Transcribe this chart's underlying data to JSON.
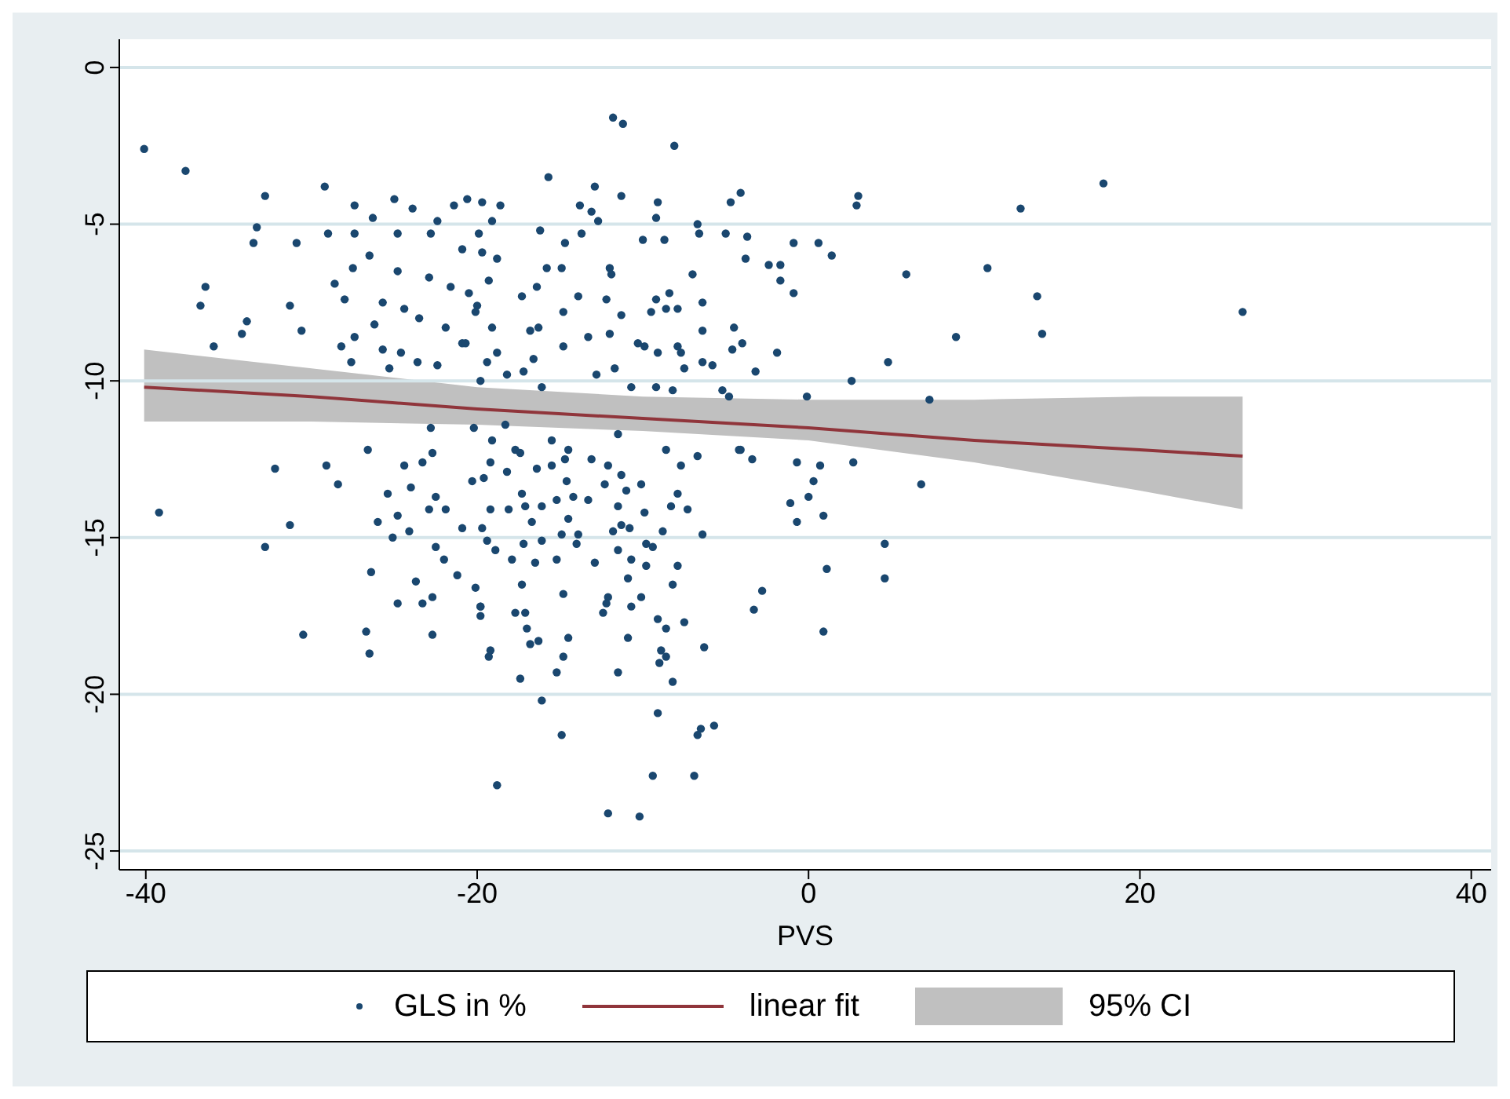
{
  "chart_data": {
    "type": "scatter",
    "xlabel": "PVS",
    "xlim": [
      -41.6,
      41.2
    ],
    "xticks": [
      -40,
      -20,
      0,
      20,
      40
    ],
    "ylim": [
      -25.6,
      0.9
    ],
    "yticks": [
      -25,
      -20,
      -15,
      -10,
      -5,
      0
    ],
    "grid": "y",
    "legend": "bottom",
    "annotations": [
      "95% CI"
    ],
    "series": [
      {
        "name": "GLS in %",
        "marker": "circle",
        "color": "#1a476f",
        "x": [
          -32.8,
          -29.2,
          -27.4,
          -25,
          -23.9,
          -26.3,
          -33.3,
          -33.5,
          -29,
          -27.4,
          -24.8,
          -22.8,
          -30.9,
          -26.5,
          -27.5,
          -24.8,
          -22.9,
          -21.6,
          -28.6,
          -36.4,
          -36.7,
          -31.3,
          -28,
          -25.7,
          -24.4,
          -33.9,
          -34.2,
          -30.6,
          -35.9,
          -26.2,
          -23.5,
          -21.9,
          -27.4,
          -28.2,
          -25.7,
          -24.6,
          -27.6,
          -23.6,
          -22.4,
          -20.9,
          -25.3,
          -20.2,
          -22.8,
          -22.7,
          -26.6,
          -32.2,
          -29.1,
          -24.4,
          -23.3,
          -21.4,
          -20.6,
          -22.4,
          -20.9,
          -19.7,
          -19.9,
          -20.5,
          -20,
          -20.7,
          -19.8,
          -40.1,
          -37.6,
          -11.8,
          -11.2,
          -8.1,
          -15.7,
          -12.9,
          -11.3,
          -4.1,
          -4.7,
          -9.1,
          -13.8,
          -18.6,
          -19.7,
          -19.1,
          -16.2,
          -13.1,
          -12.7,
          -9.2,
          -6.7,
          -6.6,
          -5,
          -3.7,
          -0.9,
          0.6,
          -3.8,
          -10,
          -8.7,
          -13.7,
          -14.7,
          -18.8,
          -14.9,
          -12,
          -11.9,
          -15.8,
          -7,
          -2.4,
          -1.7,
          -1.7,
          -0.9,
          -19.3,
          -16.4,
          -13.9,
          -17.3,
          -9.2,
          -8.4,
          -12.2,
          -6.4,
          -9.5,
          -8.6,
          -7.9,
          -14.8,
          -11.3,
          -20.1,
          -19.1,
          -16.8,
          -16.3,
          -13.3,
          -12,
          -6.4,
          -4.5,
          -4,
          -10.3,
          -9.9,
          -7.9,
          -7.7,
          -9.1,
          -4.6,
          -1.9,
          -14.8,
          -18.8,
          -16.6,
          -19.4,
          -6.4,
          -5.8,
          -11.7,
          -12.8,
          -7.5,
          -3.2,
          -17.2,
          -18.2,
          -16.1,
          -10.7,
          -9.2,
          -8.2,
          -5.2,
          -4.8,
          -0.1,
          -18.3,
          -15.5,
          -11.5,
          -19.1,
          -17.7,
          -14.7,
          -13.1,
          -8.6,
          -7.7,
          -4.1,
          -3.4,
          -0.7,
          0.7,
          -17.4,
          -19.2,
          -20.3,
          -18.2,
          -16.4,
          -15.5,
          -14.5,
          -12.1,
          -11.3,
          -14.6,
          -10.1,
          -6.7,
          -4.2,
          0.3,
          0,
          -1.1,
          0.9,
          -0.7,
          -19.2,
          -18.1,
          -17.3,
          -17.1,
          -16.1,
          -15.2,
          -14.2,
          -13.3,
          -12.3,
          -11,
          -11.5,
          -9.9,
          -8.3,
          -7.3,
          -7.9,
          -14.5,
          -16.7,
          -19.7,
          -19.4,
          -18.9,
          -17.9,
          -17.2,
          -16.1,
          -14.9,
          -13.9,
          -14,
          -11.8,
          -11.3,
          -10.8,
          -9.8,
          -9.4,
          -8.8,
          -6.4,
          -16.5,
          -15.2,
          -12.9,
          -11.5,
          -10.7,
          -9.8,
          -7.9,
          -10.9,
          -20.1,
          -17.3,
          -14.8,
          -12.1,
          -12.2,
          -10.1,
          -8.2,
          -10.7,
          -19.8,
          -19.8,
          -17.7,
          -17.1,
          -12.4,
          -17,
          -9.1,
          -8.6,
          -7.5,
          -16.8,
          -16.3,
          -14.5,
          -10.9,
          -8.9,
          -6.3,
          -19.2,
          -19.3,
          -14.8,
          -8.6,
          -9,
          -15.2,
          -11.5,
          -8.2,
          -17.4,
          -16.1,
          -9.1,
          -14.9,
          -6.5,
          -6.7,
          -5.7,
          -18.8,
          -9.4,
          -6.9,
          -12.1,
          -10.2,
          1.1,
          0.9,
          -2.8,
          -3.3,
          -39.2,
          -28.4,
          -31.3,
          -32.8,
          -30.5,
          -26.7,
          -26.5,
          -25.4,
          -24.8,
          -26,
          -25.1,
          -24.1,
          -24,
          -22.5,
          -22.9,
          -21.9,
          -26.4,
          -23.7,
          -24.8,
          -23.3,
          -22.7,
          -22.7,
          -22.5,
          -22,
          -21.2,
          -19.8,
          -20.9,
          -19.6,
          3,
          2.9,
          17.8,
          12.8,
          1.4,
          5.9,
          10.8,
          13.8,
          26.2,
          8.9,
          14.1,
          4.8,
          2.6,
          7.3,
          2.7,
          6.8,
          4.6,
          4.6
        ],
        "values": [
          -4.1,
          -3.8,
          -4.4,
          -4.2,
          -4.5,
          -4.8,
          -5.1,
          -5.6,
          -5.3,
          -5.3,
          -5.3,
          -5.3,
          -5.6,
          -6,
          -6.4,
          -6.5,
          -6.7,
          -7,
          -6.9,
          -7,
          -7.6,
          -7.6,
          -7.4,
          -7.5,
          -7.7,
          -8.1,
          -8.5,
          -8.4,
          -8.9,
          -8.2,
          -8,
          -8.3,
          -8.6,
          -8.9,
          -9,
          -9.1,
          -9.4,
          -9.4,
          -9.5,
          -8.8,
          -9.6,
          -11.5,
          -11.5,
          -12.3,
          -12.2,
          -12.8,
          -12.7,
          -12.7,
          -12.6,
          -4.4,
          -4.2,
          -4.9,
          -5.8,
          -5.9,
          -5.3,
          -7.2,
          -7.6,
          -8.8,
          -10,
          -2.6,
          -3.3,
          -1.6,
          -1.8,
          -2.5,
          -3.5,
          -3.8,
          -4.1,
          -4,
          -4.3,
          -4.3,
          -4.4,
          -4.4,
          -4.3,
          -4.9,
          -5.2,
          -4.6,
          -4.9,
          -4.8,
          -5,
          -5.3,
          -5.3,
          -5.4,
          -5.6,
          -5.6,
          -6.1,
          -5.5,
          -5.5,
          -5.3,
          -5.6,
          -6.1,
          -6.4,
          -6.4,
          -6.6,
          -6.4,
          -6.6,
          -6.3,
          -6.3,
          -6.8,
          -7.2,
          -6.8,
          -7,
          -7.3,
          -7.3,
          -7.4,
          -7.2,
          -7.4,
          -7.5,
          -7.8,
          -7.7,
          -7.7,
          -7.8,
          -7.9,
          -7.8,
          -8.3,
          -8.4,
          -8.3,
          -8.6,
          -8.5,
          -8.4,
          -8.3,
          -8.8,
          -8.8,
          -8.9,
          -8.9,
          -9.1,
          -9.1,
          -9,
          -9.1,
          -8.9,
          -9.1,
          -9.3,
          -9.4,
          -9.4,
          -9.5,
          -9.6,
          -9.8,
          -9.6,
          -9.7,
          -9.7,
          -9.8,
          -10.2,
          -10.2,
          -10.2,
          -10.3,
          -10.3,
          -10.5,
          -10.5,
          -11.4,
          -11.9,
          -11.7,
          -11.9,
          -12.2,
          -12.5,
          -12.5,
          -12.2,
          -12.7,
          -12.2,
          -12.5,
          -12.6,
          -12.7,
          -12.3,
          -12.6,
          -13.2,
          -12.9,
          -12.8,
          -12.7,
          -12.2,
          -12.7,
          -13,
          -13.2,
          -13.3,
          -12.4,
          -12.2,
          -13.2,
          -13.7,
          -13.9,
          -14.3,
          -14.5,
          -14.1,
          -14.1,
          -13.6,
          -14,
          -14,
          -13.8,
          -13.7,
          -13.8,
          -13.3,
          -13.5,
          -14,
          -14.2,
          -14,
          -14.1,
          -13.6,
          -14.4,
          -14.5,
          -14.7,
          -15.1,
          -15.4,
          -15.7,
          -15.2,
          -15.1,
          -14.9,
          -14.9,
          -15.2,
          -14.8,
          -14.6,
          -14.7,
          -15.2,
          -15.3,
          -14.8,
          -14.9,
          -15.8,
          -15.7,
          -15.8,
          -15.4,
          -15.7,
          -15.9,
          -15.9,
          -16.3,
          -16.6,
          -16.5,
          -16.8,
          -16.9,
          -17.1,
          -16.9,
          -16.5,
          -17.2,
          -17.2,
          -17.5,
          -17.4,
          -17.4,
          -17.4,
          -17.9,
          -17.6,
          -17.9,
          -17.7,
          -18.4,
          -18.3,
          -18.2,
          -18.2,
          -18.6,
          -18.5,
          -18.6,
          -18.8,
          -18.8,
          -18.8,
          -19,
          -19.3,
          -19.3,
          -19.6,
          -19.5,
          -20.2,
          -20.6,
          -21.3,
          -21.1,
          -21.3,
          -21,
          -22.9,
          -22.6,
          -22.6,
          -23.8,
          -23.9,
          -16,
          -18,
          -16.7,
          -17.3,
          -14.2,
          -13.3,
          -14.6,
          -15.3,
          -18.1,
          -18,
          -18.7,
          -13.6,
          -14.3,
          -14.5,
          -15,
          -14.8,
          -13.4,
          -13.7,
          -14.1,
          -14.1,
          -16.1,
          -16.4,
          -17.1,
          -17.1,
          -16.9,
          -18.1,
          -15.3,
          -15.7,
          -16.2,
          -17.2,
          -14.7,
          -13.1,
          -4.1,
          -4.4,
          -3.7,
          -4.5,
          -6,
          -6.6,
          -6.4,
          -7.3,
          -7.8,
          -8.6,
          -8.5,
          -9.4,
          -10,
          -10.6,
          -12.6,
          -13.3,
          -15.2,
          -16.3
        ]
      },
      {
        "name": "linear fit",
        "type": "line",
        "color": "#90353b",
        "x": [
          -40.1,
          -30,
          -20,
          -10,
          0,
          10,
          20,
          26.2
        ],
        "values": [
          -10.2,
          -10.5,
          -10.9,
          -11.2,
          -11.5,
          -11.9,
          -12.2,
          -12.4
        ],
        "upper": [
          -9.0,
          -9.6,
          -10.2,
          -10.5,
          -10.6,
          -10.6,
          -10.5,
          -10.5
        ],
        "lower": [
          -11.3,
          -11.3,
          -11.4,
          -11.6,
          -11.9,
          -12.6,
          -13.5,
          -14.1
        ]
      }
    ]
  }
}
